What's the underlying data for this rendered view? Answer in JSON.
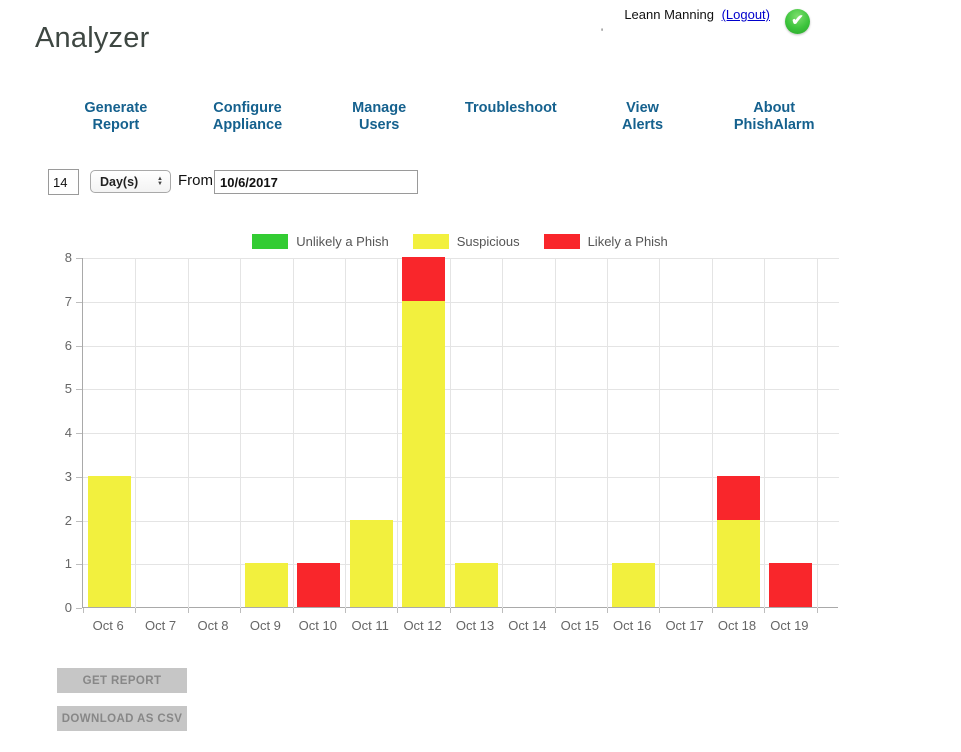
{
  "header": {
    "app_title": "Analyzer",
    "user_name": "Leann Manning",
    "logout_label": "(Logout)",
    "status_icon": "green-check",
    "stray_mark": "'"
  },
  "nav": {
    "items": [
      {
        "label": "Generate\nReport"
      },
      {
        "label": "Configure\nAppliance"
      },
      {
        "label": "Manage\nUsers"
      },
      {
        "label": "Troubleshoot"
      },
      {
        "label": "View\nAlerts"
      },
      {
        "label": "About\nPhishAlarm"
      }
    ]
  },
  "filters": {
    "count_value": "14",
    "unit_selected": "Day(s)",
    "from_label": "From:",
    "from_value": "10/6/2017"
  },
  "chart_data": {
    "type": "bar",
    "stacked": true,
    "title": "",
    "xlabel": "",
    "ylabel": "",
    "categories": [
      "Oct 6",
      "Oct 7",
      "Oct 8",
      "Oct 9",
      "Oct 10",
      "Oct 11",
      "Oct 12",
      "Oct 13",
      "Oct 14",
      "Oct 15",
      "Oct 16",
      "Oct 17",
      "Oct 18",
      "Oct 19"
    ],
    "series": [
      {
        "name": "Unlikely a Phish",
        "color": "#33cc33",
        "values": [
          0,
          0,
          0,
          0,
          0,
          0,
          0,
          0,
          0,
          0,
          0,
          0,
          0,
          0
        ]
      },
      {
        "name": "Suspicious",
        "color": "#f2f03e",
        "values": [
          3,
          0,
          0,
          1,
          0,
          2,
          7,
          1,
          0,
          0,
          1,
          0,
          2,
          0
        ]
      },
      {
        "name": "Likely a Phish",
        "color": "#f9262b",
        "values": [
          0,
          0,
          0,
          0,
          1,
          0,
          1,
          0,
          0,
          0,
          0,
          0,
          1,
          1
        ]
      }
    ],
    "ylim": [
      0,
      8
    ],
    "ytick_step": 1,
    "grid": true,
    "legend_position": "top-center"
  },
  "actions": {
    "get_report_label": "GET REPORT",
    "download_csv_label": "DOWNLOAD AS CSV"
  },
  "colors": {
    "nav_link": "#15618e",
    "logout_link": "#0000cc",
    "status_ok": "#3cc43c",
    "button_bg": "#c6c6c6",
    "button_text": "#878787"
  }
}
